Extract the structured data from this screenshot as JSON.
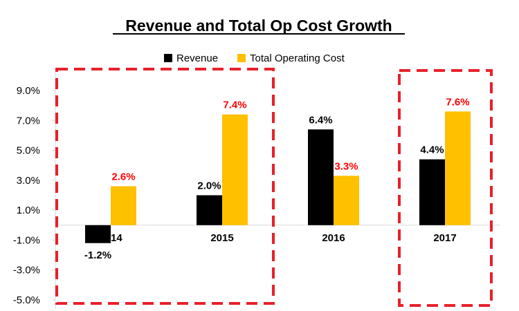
{
  "chart_data": {
    "type": "bar",
    "title": "Revenue and Total Op Cost Growth",
    "categories": [
      "2014",
      "2015",
      "2016",
      "2017"
    ],
    "series": [
      {
        "name": "Revenue",
        "values": [
          -1.2,
          2.0,
          6.4,
          4.4
        ],
        "color": "#000000",
        "labels": [
          "-1.2%",
          "2.0%",
          "6.4%",
          "4.4%"
        ],
        "label_color": "#000000"
      },
      {
        "name": "Total Operating Cost",
        "values": [
          2.6,
          7.4,
          3.3,
          7.6
        ],
        "color": "#FFC000",
        "labels": [
          "2.6%",
          "7.4%",
          "3.3%",
          "7.6%"
        ],
        "label_color": "#FF0000"
      }
    ],
    "y_ticks": [
      9.0,
      7.0,
      5.0,
      3.0,
      1.0,
      -1.0,
      -3.0,
      -5.0
    ],
    "y_tick_labels": [
      "9.0%",
      "7.0%",
      "5.0%",
      "3.0%",
      "1.0%",
      "-1.0%",
      "-3.0%",
      "-5.0%"
    ],
    "ylim": [
      -5.6,
      10.2
    ],
    "xlabel": "",
    "ylabel": "",
    "grid": false,
    "legend_position": "top-center",
    "highlights": [
      {
        "categories": [
          "2014",
          "2015"
        ],
        "style": "dashed",
        "color": "#E8202A"
      },
      {
        "categories": [
          "2017"
        ],
        "style": "dashed",
        "color": "#E8202A"
      }
    ]
  }
}
